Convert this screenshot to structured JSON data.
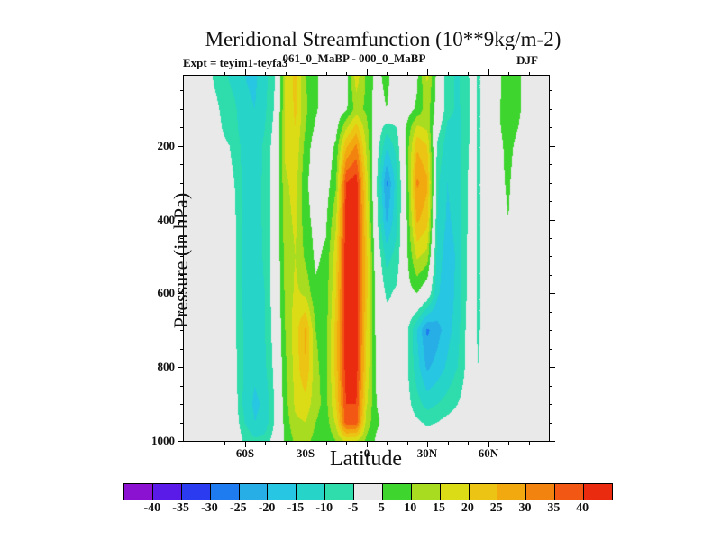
{
  "page": {
    "title": "Meridional Streamfunction (10**9kg/m-2)",
    "subtitle_left": "Expt = teyim1-teyfa3",
    "subtitle_center": "061_0_MaBP - 000_0_MaBP",
    "season": "DJF"
  },
  "chart_data": {
    "type": "heatmap",
    "title": "Meridional Streamfunction (10**9kg/m-2)",
    "subtitle": "061_0_MaBP - 000_0_MaBP",
    "experiment": "Expt = teyim1-teyfa3",
    "season": "DJF",
    "xlabel": "Latitude",
    "ylabel": "Pressure (in hPa)",
    "units": "10**9 kg/m-2",
    "xlim": [
      -90,
      90
    ],
    "ylim": [
      10,
      1000
    ],
    "grid": false,
    "plot_bg": "#e9e9e9",
    "levels": [
      -40,
      -35,
      -30,
      -25,
      -20,
      -15,
      -10,
      -5,
      5,
      10,
      15,
      20,
      25,
      30,
      35,
      40
    ],
    "colors": [
      "#8a12d0",
      "#5a1ae8",
      "#2b3cf0",
      "#1e7cf0",
      "#28aee6",
      "#27c6e2",
      "#27d4c8",
      "#2eddab",
      "#e9e9e9",
      "#3fd52f",
      "#a8dc20",
      "#dcdc16",
      "#ecc414",
      "#f2a90f",
      "#f2830f",
      "#f25714",
      "#ea2b0f"
    ],
    "x_ticks": {
      "major_values": [
        -60,
        -30,
        0,
        30,
        60
      ],
      "major_labels": [
        "60S",
        "30S",
        "0",
        "30N",
        "60N"
      ],
      "minor_step": 10
    },
    "y_ticks": {
      "major_values": [
        200,
        400,
        600,
        800,
        1000
      ],
      "major_labels": [
        "200",
        "400",
        "600",
        "800",
        "1000"
      ],
      "minor_step": 50
    },
    "colorbar": {
      "tick_labels": [
        "-40",
        "-35",
        "-30",
        "-25",
        "-20",
        "-15",
        "-10",
        "-5",
        "5",
        "10",
        "15",
        "20",
        "25",
        "30",
        "35",
        "40"
      ]
    },
    "x": [
      -90,
      -85,
      -80,
      -75,
      -70,
      -65,
      -60,
      -55,
      -50,
      -45,
      -40,
      -35,
      -30,
      -25,
      -20,
      -15,
      -10,
      -5,
      0,
      5,
      10,
      15,
      20,
      25,
      30,
      35,
      40,
      45,
      50,
      52.5,
      55,
      60,
      65,
      70,
      75,
      80,
      85,
      90
    ],
    "y": [
      10,
      100,
      150,
      200,
      300,
      400,
      500,
      600,
      700,
      800,
      900,
      950,
      1000
    ],
    "values": [
      [
        0,
        0,
        0,
        -6,
        -9,
        -12,
        -15,
        -16,
        -12,
        -5,
        15,
        22,
        10,
        7,
        0,
        0,
        2,
        18,
        9,
        3,
        7,
        0,
        0,
        4,
        16,
        3,
        -8,
        -11,
        -6,
        -2,
        -6,
        -1,
        3,
        9,
        6,
        2,
        0,
        0
      ],
      [
        0,
        0,
        0,
        -3,
        -7,
        -9,
        -14,
        -15,
        -11,
        -4,
        15,
        21,
        11,
        6,
        1,
        1,
        4,
        12,
        9,
        2,
        5,
        0,
        2,
        6,
        13,
        2,
        -8,
        -11,
        -7,
        -2,
        -6,
        -1,
        4,
        9,
        6,
        2,
        0,
        0
      ],
      [
        0,
        0,
        0,
        -2,
        -6,
        -8,
        -14,
        -14,
        -10,
        -3,
        16,
        20,
        10,
        4,
        1,
        3,
        14,
        22,
        12,
        0,
        -8,
        -5,
        6,
        16,
        14,
        -2,
        -11,
        -12,
        -7,
        -2,
        -6,
        -1,
        4,
        8,
        5,
        1,
        0,
        0
      ],
      [
        0,
        0,
        0,
        -1,
        -4,
        -6,
        -13,
        -13,
        -9,
        -2,
        16,
        19,
        8,
        2,
        1,
        6,
        24,
        31,
        14,
        -2,
        -14,
        -8,
        7,
        24,
        20,
        -6,
        -13,
        -12,
        -6,
        -2,
        -6,
        -1,
        3,
        7,
        3,
        0,
        0,
        0
      ],
      [
        0,
        0,
        0,
        0,
        -3,
        -5,
        -12,
        -12,
        -9,
        -1,
        14,
        17,
        6,
        2,
        2,
        9,
        40,
        43,
        18,
        -4,
        -26,
        -12,
        6,
        31,
        26,
        -9,
        -15,
        -12,
        -5,
        -1,
        -6,
        -1,
        3,
        6,
        1,
        0,
        0,
        0
      ],
      [
        0,
        0,
        0,
        0,
        -3,
        -4,
        -12,
        -12,
        -9,
        -1,
        13,
        16,
        7,
        3,
        4,
        14,
        43,
        44,
        20,
        -3,
        -21,
        -11,
        5,
        26,
        22,
        -10,
        -16,
        -13,
        -5,
        -1,
        -6,
        -1,
        2,
        5,
        0,
        0,
        0,
        0
      ],
      [
        0,
        0,
        0,
        0,
        -2,
        -4,
        -13,
        -13,
        -9,
        -1,
        12,
        15,
        9,
        4,
        6,
        18,
        44,
        44,
        22,
        0,
        -12,
        -8,
        4,
        16,
        13,
        -12,
        -18,
        -14,
        -4,
        -1,
        -6,
        -1,
        0,
        2,
        0,
        0,
        0,
        0
      ],
      [
        0,
        0,
        0,
        1,
        5,
        -4,
        -12,
        -13,
        -10,
        -1,
        11,
        16,
        14,
        6,
        7,
        20,
        44,
        44,
        22,
        2,
        -6,
        -4,
        3,
        5,
        0,
        -14,
        -19,
        -13,
        -4,
        -1,
        -6,
        -1,
        0,
        0,
        0,
        0,
        0,
        0
      ],
      [
        0,
        0,
        0,
        1,
        5,
        -4,
        -11,
        -13,
        -10,
        -2,
        10,
        18,
        26,
        10,
        8,
        22,
        44,
        43,
        20,
        3,
        -2,
        -4,
        -4,
        -15,
        -26,
        -22,
        -17,
        -12,
        -3,
        -1,
        -6,
        -1,
        0,
        0,
        0,
        0,
        0,
        0
      ],
      [
        0,
        0,
        0,
        1,
        5,
        -3,
        -11,
        -14,
        -11,
        -3,
        9,
        17,
        25,
        11,
        8,
        22,
        43,
        43,
        19,
        4,
        0,
        -3,
        -4,
        -13,
        -21,
        -18,
        -14,
        -10,
        -3,
        -1,
        -5,
        0,
        0,
        0,
        0,
        0,
        0,
        0
      ],
      [
        0,
        0,
        0,
        0,
        3,
        -2,
        -12,
        -16,
        -14,
        -4,
        8,
        16,
        18,
        12,
        8,
        20,
        40,
        40,
        16,
        5,
        2,
        -4,
        -3,
        -8,
        -12,
        -10,
        -8,
        -5,
        -2,
        0,
        -3,
        0,
        0,
        0,
        0,
        0,
        0,
        0
      ],
      [
        0,
        0,
        0,
        0,
        1,
        -1,
        -10,
        -15,
        -13,
        -4,
        7,
        14,
        15,
        10,
        7,
        16,
        38,
        38,
        13,
        6,
        3,
        -2,
        -2,
        -4,
        -6,
        -5,
        -3,
        -2,
        0,
        0,
        0,
        0,
        0,
        0,
        0,
        0,
        0,
        0
      ],
      [
        0,
        0,
        0,
        0,
        0,
        0,
        -6,
        -9,
        -8,
        -2,
        6,
        11,
        12,
        8,
        6,
        10,
        16,
        15,
        9,
        4,
        2,
        0,
        0,
        0,
        -1,
        -1,
        0,
        0,
        0,
        0,
        0,
        0,
        0,
        0,
        0,
        0,
        0,
        0
      ]
    ]
  }
}
